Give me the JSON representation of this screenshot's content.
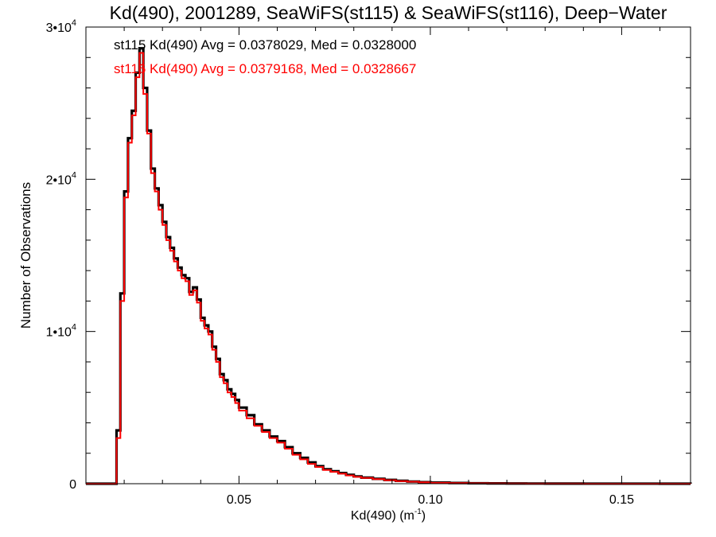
{
  "chart_data": {
    "type": "line",
    "title": "Kd(490), 2001289, SeaWiFS(st115) & SeaWiFS(st116), Deep−Water",
    "xlabel": "Kd(490) (m",
    "xlabel_sup": "-1",
    "xlabel_suffix": ")",
    "ylabel": "Number of Observations",
    "xlim": [
      0.01,
      0.168
    ],
    "ylim": [
      0,
      30000
    ],
    "grid": false,
    "x_ticks": [
      {
        "value": 0.05,
        "label": "0.05"
      },
      {
        "value": 0.1,
        "label": "0.10"
      },
      {
        "value": 0.15,
        "label": "0.15"
      }
    ],
    "y_ticks": [
      {
        "value": 0,
        "label": "0",
        "sup": ""
      },
      {
        "value": 10000,
        "label": "1•10",
        "sup": "4"
      },
      {
        "value": 20000,
        "label": "2•10",
        "sup": "4"
      },
      {
        "value": 30000,
        "label": "3•10",
        "sup": "4"
      }
    ],
    "annotations": [
      {
        "text": "st115 Kd(490) Avg = 0.0378029, Med = 0.0328000",
        "color": "#000000"
      },
      {
        "text": "st116 Kd(490) Avg = 0.0379168, Med = 0.0328667",
        "color": "#ff0000"
      }
    ],
    "series": [
      {
        "color": "#000000",
        "x": [
          0.017,
          0.018,
          0.019,
          0.02,
          0.021,
          0.022,
          0.023,
          0.024,
          0.025,
          0.026,
          0.027,
          0.028,
          0.029,
          0.03,
          0.031,
          0.032,
          0.033,
          0.034,
          0.035,
          0.036,
          0.037,
          0.038,
          0.039,
          0.04,
          0.041,
          0.042,
          0.043,
          0.044,
          0.045,
          0.046,
          0.047,
          0.048,
          0.049,
          0.05,
          0.052,
          0.054,
          0.056,
          0.058,
          0.06,
          0.062,
          0.064,
          0.066,
          0.068,
          0.07,
          0.072,
          0.074,
          0.076,
          0.078,
          0.08,
          0.082,
          0.085,
          0.088,
          0.091,
          0.094,
          0.097,
          0.1,
          0.105,
          0.11,
          0.115,
          0.12,
          0.125,
          0.13,
          0.14,
          0.15,
          0.16,
          0.168
        ],
        "y": [
          0,
          3500,
          12500,
          19200,
          22700,
          24500,
          27000,
          28600,
          26000,
          23200,
          20700,
          19400,
          18300,
          17200,
          16200,
          15500,
          14800,
          14200,
          13700,
          13500,
          12600,
          12900,
          12100,
          10900,
          10400,
          10000,
          9000,
          8200,
          7200,
          6800,
          6200,
          5900,
          5500,
          5000,
          4500,
          3900,
          3500,
          3100,
          2800,
          2400,
          2000,
          1700,
          1400,
          1150,
          950,
          820,
          700,
          580,
          480,
          400,
          320,
          250,
          190,
          140,
          100,
          70,
          45,
          30,
          20,
          14,
          9,
          6,
          3,
          2,
          1,
          0
        ]
      },
      {
        "color": "#ff0000",
        "x": [
          0.017,
          0.018,
          0.019,
          0.02,
          0.021,
          0.022,
          0.023,
          0.024,
          0.025,
          0.026,
          0.027,
          0.028,
          0.029,
          0.03,
          0.031,
          0.032,
          0.033,
          0.034,
          0.035,
          0.036,
          0.037,
          0.038,
          0.039,
          0.04,
          0.041,
          0.042,
          0.043,
          0.044,
          0.045,
          0.046,
          0.047,
          0.048,
          0.049,
          0.05,
          0.052,
          0.054,
          0.056,
          0.058,
          0.06,
          0.062,
          0.064,
          0.066,
          0.068,
          0.07,
          0.072,
          0.074,
          0.076,
          0.078,
          0.08,
          0.082,
          0.085,
          0.088,
          0.091,
          0.094,
          0.097,
          0.1,
          0.105,
          0.11,
          0.115,
          0.12,
          0.125,
          0.13,
          0.14,
          0.15,
          0.16,
          0.168
        ],
        "y": [
          0,
          3000,
          12000,
          18800,
          22400,
          24200,
          26700,
          28300,
          25600,
          23000,
          20400,
          19200,
          18000,
          17000,
          16000,
          15300,
          14600,
          14000,
          13500,
          13300,
          12400,
          12700,
          11900,
          10700,
          10200,
          9800,
          8800,
          8000,
          7000,
          6600,
          6000,
          5700,
          5300,
          4800,
          4300,
          3800,
          3400,
          3000,
          2700,
          2300,
          1900,
          1600,
          1300,
          1100,
          900,
          780,
          660,
          540,
          450,
          380,
          300,
          230,
          170,
          130,
          90,
          60,
          40,
          28,
          18,
          12,
          8,
          5,
          3,
          2,
          1,
          0
        ]
      }
    ]
  }
}
